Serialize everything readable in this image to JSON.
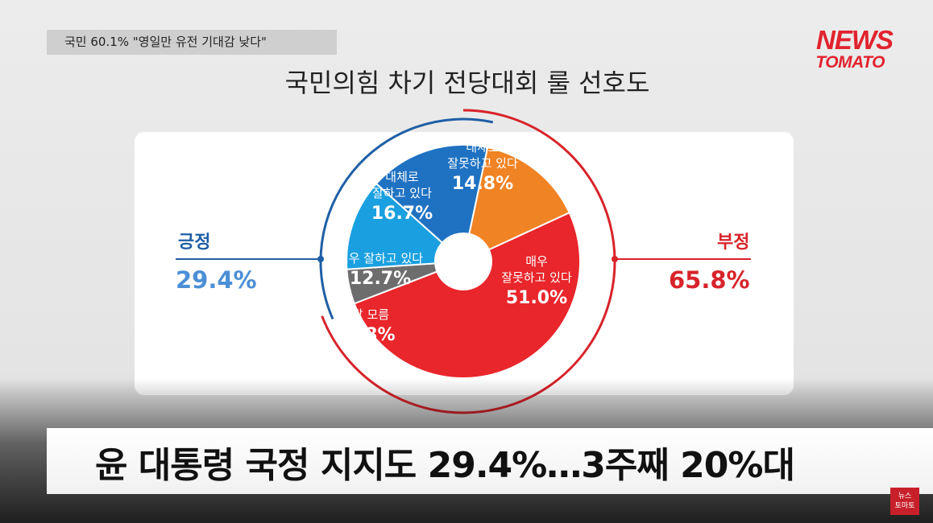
{
  "headline_tag": "국민 60.1% \"영일만 유전 기대감 낮다\"",
  "logo": {
    "line1": "NEWS",
    "line2": "TOMATO"
  },
  "caption": "윤 대통령 국정 지지도 29.4%…3주째 20%대",
  "corner_logo": {
    "line1": "뉴스",
    "line2": "토마토"
  },
  "summary": {
    "positive": {
      "label": "긍정",
      "value": "29.4%",
      "color": "#1f5fa5"
    },
    "negative": {
      "label": "부정",
      "value": "65.8%",
      "color": "#d8232a"
    }
  },
  "chart_data": {
    "type": "pie",
    "title": "국민의힘 차기 전당대회 룰 선호도",
    "donut": true,
    "slices": [
      {
        "name": [
          "대체로",
          "잘못하고 있다"
        ],
        "value": 14.8,
        "label": "14.8%",
        "color": "#f08324"
      },
      {
        "name": [
          "매우",
          "잘못하고 있다"
        ],
        "value": 51.0,
        "label": "51.0%",
        "color": "#e8262b"
      },
      {
        "name": [
          "잘 모름"
        ],
        "value": 4.8,
        "label": "4.8%",
        "color": "#6d6d6d"
      },
      {
        "name": [
          "매우 잘하고 있다"
        ],
        "value": 12.7,
        "label": "12.7%",
        "color": "#1aa0e0"
      },
      {
        "name": [
          "대체로",
          "잘하고 있다"
        ],
        "value": 16.7,
        "label": "16.7%",
        "color": "#1f72c2"
      }
    ]
  }
}
